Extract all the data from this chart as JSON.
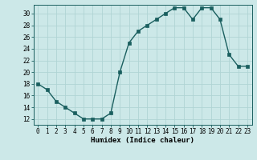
{
  "x": [
    0,
    1,
    2,
    3,
    4,
    5,
    6,
    7,
    8,
    9,
    10,
    11,
    12,
    13,
    14,
    15,
    16,
    17,
    18,
    19,
    20,
    21,
    22,
    23
  ],
  "y": [
    18,
    17,
    15,
    14,
    13,
    12,
    12,
    12,
    13,
    20,
    25,
    27,
    28,
    29,
    30,
    31,
    31,
    29,
    31,
    31,
    29,
    23,
    21,
    21
  ],
  "line_color": "#1a5f5f",
  "marker_color": "#1a5f5f",
  "bg_color": "#cce8e8",
  "grid_color": "#b0d4d4",
  "xlabel": "Humidex (Indice chaleur)",
  "ylim": [
    11,
    31.5
  ],
  "xlim": [
    -0.5,
    23.5
  ],
  "yticks": [
    12,
    14,
    16,
    18,
    20,
    22,
    24,
    26,
    28,
    30
  ],
  "xticks": [
    0,
    1,
    2,
    3,
    4,
    5,
    6,
    7,
    8,
    9,
    10,
    11,
    12,
    13,
    14,
    15,
    16,
    17,
    18,
    19,
    20,
    21,
    22,
    23
  ],
  "xlabel_fontsize": 6.5,
  "tick_fontsize": 5.5,
  "line_width": 1.0,
  "marker_size": 2.5
}
